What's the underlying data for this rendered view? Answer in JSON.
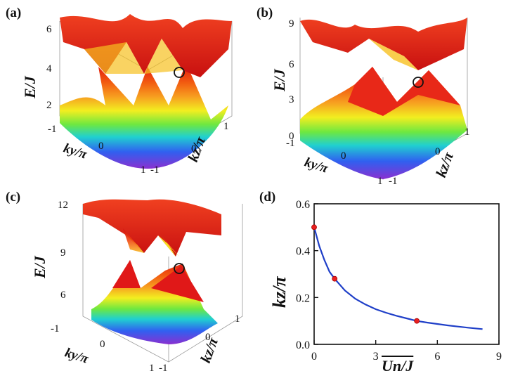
{
  "figure": {
    "panels": [
      {
        "label": "(a)",
        "zlabel": "E/J",
        "zticks": [
          "6",
          "4",
          "2"
        ],
        "xlabel": "ky/π",
        "xticks": [
          "-1",
          "0",
          "1"
        ],
        "ylabel": "kz/π",
        "yticks": [
          "-1",
          "0",
          "1"
        ]
      },
      {
        "label": "(b)",
        "zlabel": "E/J",
        "zticks": [
          "9",
          "6",
          "3",
          "0"
        ],
        "xlabel": "ky/π",
        "xticks": [
          "-1",
          "0",
          "1"
        ],
        "ylabel": "kz/π",
        "yticks": [
          "-1",
          "0",
          "1"
        ]
      },
      {
        "label": "(c)",
        "zlabel": "E/J",
        "zticks": [
          "12",
          "9",
          "6"
        ],
        "xlabel": "ky/π",
        "xticks": [
          "-1",
          "0",
          "1"
        ],
        "ylabel": "kz/π",
        "yticks": [
          "-1",
          "0",
          "1"
        ]
      }
    ],
    "line_panel": {
      "label": "(d)",
      "ylabel": "kz/π",
      "xlabel": "Un/J",
      "xticks": [
        "0",
        "3",
        "6",
        "9"
      ],
      "yticks": [
        "0.0",
        "0.2",
        "0.4",
        "0.6"
      ]
    }
  },
  "chart_data": {
    "type": "line",
    "xlim": [
      0,
      9
    ],
    "ylim": [
      0,
      0.6
    ],
    "grid": false,
    "color": "#1f3fc8",
    "marker_color": "#e82020",
    "x": [
      0,
      0.25,
      0.5,
      0.75,
      1,
      1.5,
      2,
      2.5,
      3,
      3.5,
      4,
      4.5,
      5,
      5.5,
      6,
      6.5,
      7,
      7.5,
      8.2
    ],
    "y": [
      0.5,
      0.42,
      0.36,
      0.31,
      0.28,
      0.23,
      0.195,
      0.17,
      0.15,
      0.135,
      0.122,
      0.111,
      0.1,
      0.093,
      0.087,
      0.081,
      0.076,
      0.071,
      0.065
    ],
    "markers": [
      {
        "x": 0,
        "y": 0.5
      },
      {
        "x": 1,
        "y": 0.28
      },
      {
        "x": 5,
        "y": 0.1
      }
    ]
  }
}
